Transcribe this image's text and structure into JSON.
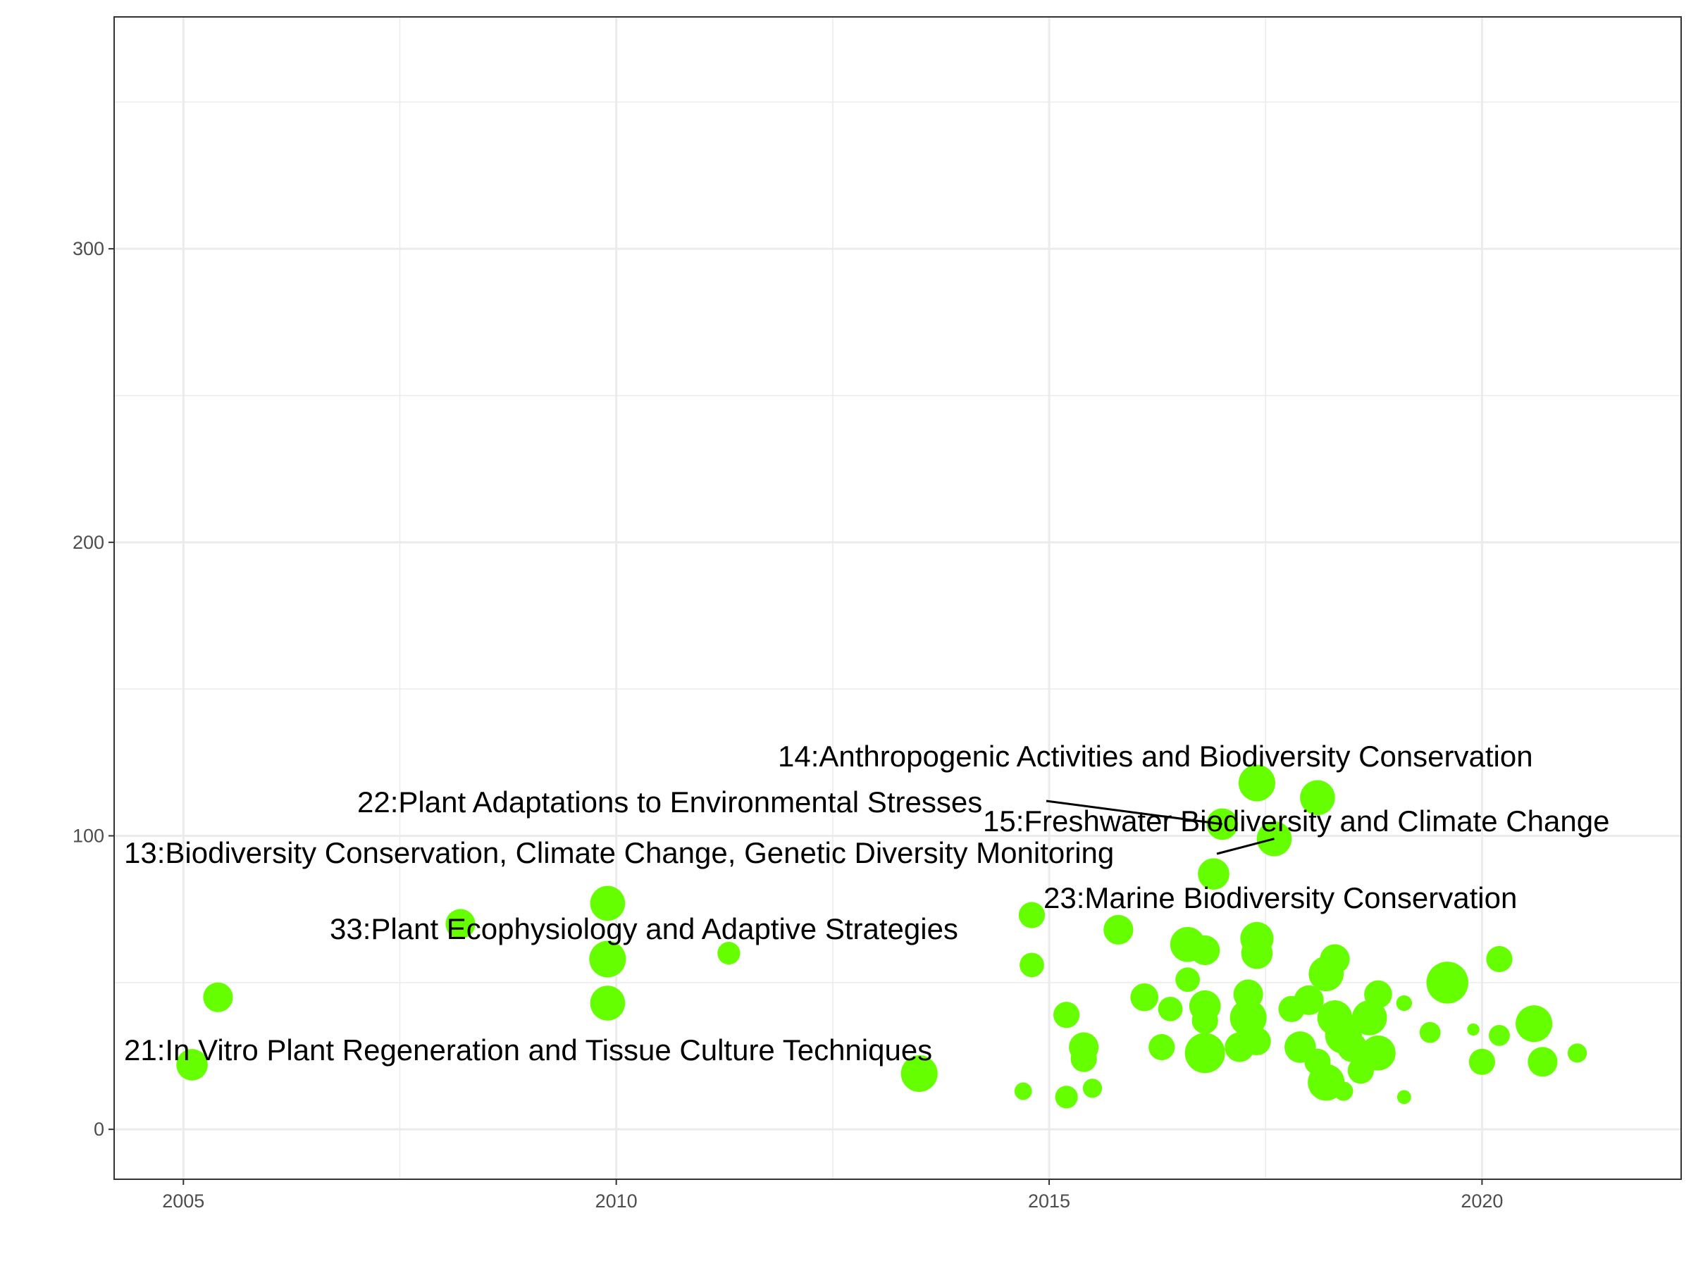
{
  "chart_data": {
    "type": "scatter",
    "title": "",
    "xlabel": "",
    "ylabel": "",
    "xlim": [
      2004.2,
      2022.3
    ],
    "ylim": [
      -17,
      379
    ],
    "x_ticks": [
      2005,
      2010,
      2015,
      2020
    ],
    "y_ticks": [
      0,
      100,
      200,
      300
    ],
    "grid": true,
    "legend": "none",
    "point_color": "#66FF00",
    "points": [
      {
        "x": 2005.1,
        "y": 22,
        "size": 36
      },
      {
        "x": 2005.4,
        "y": 45,
        "size": 34
      },
      {
        "x": 2008.2,
        "y": 70,
        "size": 34
      },
      {
        "x": 2009.9,
        "y": 77,
        "size": 40
      },
      {
        "x": 2009.9,
        "y": 58,
        "size": 42
      },
      {
        "x": 2009.9,
        "y": 43,
        "size": 40
      },
      {
        "x": 2011.3,
        "y": 60,
        "size": 26
      },
      {
        "x": 2013.5,
        "y": 19,
        "size": 42
      },
      {
        "x": 2014.7,
        "y": 13,
        "size": 20
      },
      {
        "x": 2014.8,
        "y": 73,
        "size": 30
      },
      {
        "x": 2014.8,
        "y": 56,
        "size": 28
      },
      {
        "x": 2015.2,
        "y": 39,
        "size": 30
      },
      {
        "x": 2015.2,
        "y": 11,
        "size": 26
      },
      {
        "x": 2015.4,
        "y": 28,
        "size": 34
      },
      {
        "x": 2015.4,
        "y": 24,
        "size": 30
      },
      {
        "x": 2015.5,
        "y": 14,
        "size": 22
      },
      {
        "x": 2015.8,
        "y": 68,
        "size": 34
      },
      {
        "x": 2016.1,
        "y": 45,
        "size": 32
      },
      {
        "x": 2016.3,
        "y": 28,
        "size": 30
      },
      {
        "x": 2016.4,
        "y": 41,
        "size": 28
      },
      {
        "x": 2016.6,
        "y": 63,
        "size": 40
      },
      {
        "x": 2016.6,
        "y": 51,
        "size": 28
      },
      {
        "x": 2016.8,
        "y": 61,
        "size": 34
      },
      {
        "x": 2016.8,
        "y": 42,
        "size": 36
      },
      {
        "x": 2016.8,
        "y": 37,
        "size": 30
      },
      {
        "x": 2016.8,
        "y": 26,
        "size": 46
      },
      {
        "x": 2016.9,
        "y": 87,
        "size": 36
      },
      {
        "x": 2017.0,
        "y": 104,
        "size": 36
      },
      {
        "x": 2017.2,
        "y": 28,
        "size": 34
      },
      {
        "x": 2017.3,
        "y": 46,
        "size": 34
      },
      {
        "x": 2017.3,
        "y": 38,
        "size": 42
      },
      {
        "x": 2017.4,
        "y": 118,
        "size": 42
      },
      {
        "x": 2017.4,
        "y": 65,
        "size": 38
      },
      {
        "x": 2017.4,
        "y": 60,
        "size": 36
      },
      {
        "x": 2017.4,
        "y": 30,
        "size": 32
      },
      {
        "x": 2017.6,
        "y": 99,
        "size": 40
      },
      {
        "x": 2017.8,
        "y": 41,
        "size": 30
      },
      {
        "x": 2017.9,
        "y": 28,
        "size": 36
      },
      {
        "x": 2018.0,
        "y": 44,
        "size": 34
      },
      {
        "x": 2018.1,
        "y": 113,
        "size": 40
      },
      {
        "x": 2018.1,
        "y": 23,
        "size": 30
      },
      {
        "x": 2018.2,
        "y": 53,
        "size": 40
      },
      {
        "x": 2018.2,
        "y": 16,
        "size": 42
      },
      {
        "x": 2018.3,
        "y": 58,
        "size": 34
      },
      {
        "x": 2018.3,
        "y": 38,
        "size": 40
      },
      {
        "x": 2018.4,
        "y": 32,
        "size": 42
      },
      {
        "x": 2018.5,
        "y": 28,
        "size": 34
      },
      {
        "x": 2018.4,
        "y": 13,
        "size": 22
      },
      {
        "x": 2018.6,
        "y": 20,
        "size": 30
      },
      {
        "x": 2018.7,
        "y": 38,
        "size": 40
      },
      {
        "x": 2018.8,
        "y": 46,
        "size": 32
      },
      {
        "x": 2018.8,
        "y": 26,
        "size": 40
      },
      {
        "x": 2019.1,
        "y": 43,
        "size": 18
      },
      {
        "x": 2019.1,
        "y": 11,
        "size": 16
      },
      {
        "x": 2019.4,
        "y": 33,
        "size": 24
      },
      {
        "x": 2019.6,
        "y": 50,
        "size": 48
      },
      {
        "x": 2019.9,
        "y": 34,
        "size": 14
      },
      {
        "x": 2020.0,
        "y": 23,
        "size": 30
      },
      {
        "x": 2020.2,
        "y": 58,
        "size": 30
      },
      {
        "x": 2020.2,
        "y": 32,
        "size": 24
      },
      {
        "x": 2020.6,
        "y": 36,
        "size": 42
      },
      {
        "x": 2020.7,
        "y": 23,
        "size": 34
      },
      {
        "x": 2021.1,
        "y": 26,
        "size": 22
      }
    ],
    "annotations": [
      {
        "text": "14:Anthropogenic Activities and Biodiversity Conservation",
        "x": 2017.4,
        "y": 118,
        "leader": false
      },
      {
        "text": "22:Plant Adaptations to Environmental Stresses",
        "x": 2017.0,
        "y": 104,
        "leader": true
      },
      {
        "text": "15:Freshwater Biodiversity and Climate Change",
        "x": 2017.6,
        "y": 99,
        "leader": false
      },
      {
        "text": "13:Biodiversity Conservation, Climate Change, Genetic Diversity Monitoring",
        "x": 2017.6,
        "y": 99,
        "leader": true
      },
      {
        "text": "23:Marine Biodiversity Conservation",
        "x": 2016.9,
        "y": 87,
        "leader": false
      },
      {
        "text": "33:Plant Ecophysiology and Adaptive Strategies",
        "x": 2008.2,
        "y": 70,
        "leader": false
      },
      {
        "text": "21:In Vitro Plant Regeneration and Tissue Culture Techniques",
        "x": 2005.1,
        "y": 22,
        "leader": false
      }
    ]
  }
}
